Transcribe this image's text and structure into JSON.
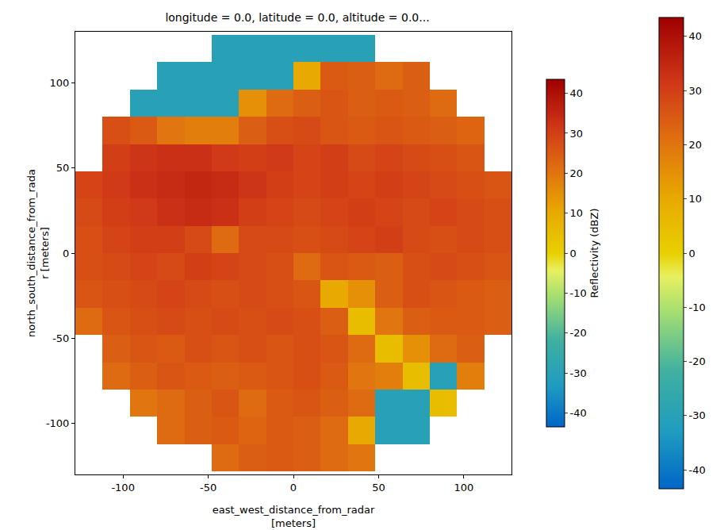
{
  "chart_data": {
    "type": "heatmap",
    "title": "longitude = 0.0, latitude = 0.0, altitude = 0.0...",
    "xlabel": "east_west_distance_from_radar\n[meters]",
    "ylabel": "north_south_distance_from_rada\nr [meters]",
    "x": [
      -120,
      -104,
      -88,
      -72,
      -56,
      -40,
      -24,
      -8,
      8,
      24,
      40,
      56,
      72,
      88,
      104,
      120
    ],
    "y": [
      -120,
      -104,
      -88,
      -72,
      -56,
      -40,
      -24,
      -8,
      8,
      24,
      40,
      56,
      72,
      88,
      104,
      120
    ],
    "z": [
      [
        null,
        null,
        null,
        null,
        null,
        22,
        24,
        25,
        24,
        22,
        20,
        null,
        null,
        null,
        null,
        null
      ],
      [
        null,
        null,
        null,
        22,
        24,
        25,
        23,
        25,
        24,
        22,
        10,
        -30,
        -30,
        null,
        null,
        null
      ],
      [
        null,
        null,
        20,
        22,
        24,
        26,
        22,
        25,
        26,
        24,
        22,
        -30,
        -30,
        5,
        null,
        null
      ],
      [
        null,
        22,
        24,
        26,
        25,
        24,
        25,
        26,
        27,
        25,
        20,
        18,
        5,
        -30,
        18,
        null
      ],
      [
        null,
        24,
        26,
        25,
        27,
        26,
        27,
        26,
        27,
        26,
        22,
        5,
        15,
        22,
        24,
        null
      ],
      [
        22,
        26,
        27,
        28,
        27,
        28,
        27,
        28,
        27,
        24,
        5,
        20,
        24,
        25,
        25,
        24
      ],
      [
        26,
        27,
        28,
        29,
        28,
        27,
        28,
        27,
        26,
        10,
        15,
        24,
        27,
        26,
        25,
        24
      ],
      [
        27,
        28,
        29,
        28,
        30,
        29,
        28,
        27,
        22,
        26,
        25,
        24,
        27,
        28,
        27,
        26
      ],
      [
        27,
        29,
        30,
        30,
        28,
        22,
        28,
        28,
        27,
        28,
        29,
        30,
        28,
        27,
        28,
        27
      ],
      [
        28,
        30,
        31,
        33,
        34,
        33,
        30,
        29,
        28,
        29,
        30,
        29,
        28,
        29,
        28,
        27
      ],
      [
        29,
        31,
        33,
        34,
        35,
        34,
        32,
        30,
        29,
        30,
        29,
        30,
        29,
        28,
        27,
        26
      ],
      [
        null,
        30,
        32,
        33,
        33,
        31,
        30,
        31,
        29,
        30,
        28,
        29,
        28,
        27,
        26,
        null
      ],
      [
        null,
        27,
        25,
        20,
        18,
        18,
        24,
        27,
        28,
        26,
        25,
        26,
        25,
        24,
        23,
        null
      ],
      [
        null,
        null,
        -30,
        -30,
        -30,
        -30,
        15,
        22,
        24,
        26,
        24,
        25,
        24,
        22,
        null,
        null
      ],
      [
        null,
        null,
        null,
        -30,
        -30,
        -30,
        -30,
        -30,
        10,
        25,
        24,
        22,
        24,
        null,
        null,
        null
      ],
      [
        null,
        null,
        null,
        null,
        null,
        -30,
        -30,
        -30,
        -30,
        -30,
        -30,
        null,
        null,
        null,
        null,
        null
      ]
    ],
    "xlim": [
      -128,
      128
    ],
    "ylim": [
      -128,
      128
    ],
    "xticks": [
      -100,
      -50,
      0,
      50,
      100
    ],
    "yticks": [
      -100,
      -50,
      0,
      50,
      100
    ],
    "grid": false,
    "colorbars": [
      {
        "label": "Reflectivity (dBZ)",
        "range": [
          -43.5,
          43.5
        ],
        "ticks": [
          -40,
          -30,
          -20,
          -10,
          0,
          10,
          20,
          30,
          40
        ]
      },
      {
        "range": [
          -43.5,
          43.5
        ],
        "ticks": [
          -40,
          -30,
          -20,
          -10,
          0,
          10,
          20,
          30,
          40
        ]
      }
    ]
  }
}
